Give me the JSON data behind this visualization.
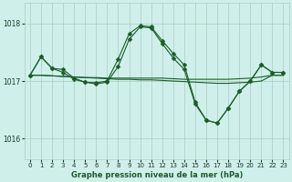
{
  "bg_color": "#cff0ea",
  "grid_color": "#b0c8c4",
  "line_color": "#1a5c2a",
  "xlim": [
    -0.5,
    23.5
  ],
  "ylim": [
    1015.65,
    1018.35
  ],
  "yticks": [
    1016,
    1017,
    1018
  ],
  "xticks": [
    0,
    1,
    2,
    3,
    4,
    5,
    6,
    7,
    8,
    9,
    10,
    11,
    12,
    13,
    14,
    15,
    16,
    17,
    18,
    19,
    20,
    21,
    22,
    23
  ],
  "xlabel": "Graphe pression niveau de la mer (hPa)",
  "curveA_x": [
    0,
    1,
    2,
    3,
    4,
    5,
    6,
    7,
    8,
    9,
    10,
    11,
    12,
    13,
    14,
    15,
    16,
    17,
    18,
    19,
    20,
    21,
    22,
    23
  ],
  "curveA_y": [
    1017.1,
    1017.42,
    1017.22,
    1017.2,
    1017.05,
    1016.98,
    1016.97,
    1017.0,
    1017.38,
    1017.82,
    1017.96,
    1017.94,
    1017.7,
    1017.48,
    1017.28,
    1016.63,
    1016.32,
    1016.27,
    1016.53,
    1016.82,
    1017.0,
    1017.28,
    1017.15,
    1017.15
  ],
  "curveB_x": [
    0,
    1,
    2,
    3,
    4,
    5,
    6,
    7,
    8,
    9,
    10,
    11,
    12,
    13,
    14,
    15,
    16,
    17,
    18,
    19,
    20,
    21,
    22,
    23
  ],
  "curveB_y": [
    1017.1,
    1017.42,
    1017.22,
    1017.15,
    1017.03,
    1016.98,
    1016.95,
    1016.98,
    1017.25,
    1017.72,
    1017.94,
    1017.92,
    1017.65,
    1017.4,
    1017.2,
    1016.6,
    1016.32,
    1016.27,
    1016.53,
    1016.82,
    1017.0,
    1017.28,
    1017.15,
    1017.15
  ],
  "curveC_x": [
    0,
    1,
    2,
    3,
    4,
    5,
    6,
    7,
    8,
    9,
    10,
    11,
    12,
    13,
    14,
    15,
    16,
    17,
    18,
    19,
    20,
    21,
    22,
    23
  ],
  "curveC_y": [
    1017.1,
    1017.1,
    1017.09,
    1017.08,
    1017.07,
    1017.06,
    1017.06,
    1017.05,
    1017.05,
    1017.05,
    1017.05,
    1017.05,
    1017.05,
    1017.04,
    1017.03,
    1017.03,
    1017.03,
    1017.03,
    1017.03,
    1017.04,
    1017.05,
    1017.07,
    1017.1,
    1017.1
  ],
  "curveD_x": [
    0,
    1,
    2,
    3,
    4,
    5,
    6,
    7,
    8,
    9,
    10,
    11,
    12,
    13,
    14,
    15,
    16,
    17,
    18,
    19,
    20,
    21,
    22,
    23
  ],
  "curveD_y": [
    1017.1,
    1017.1,
    1017.09,
    1017.08,
    1017.07,
    1017.06,
    1017.05,
    1017.04,
    1017.03,
    1017.03,
    1017.02,
    1017.02,
    1017.01,
    1017.0,
    1016.99,
    1016.98,
    1016.97,
    1016.96,
    1016.96,
    1016.97,
    1016.98,
    1017.0,
    1017.1,
    1017.1
  ]
}
